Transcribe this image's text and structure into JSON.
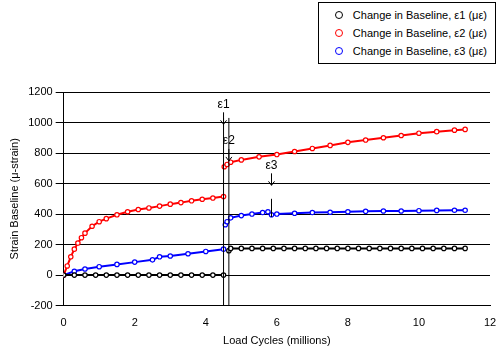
{
  "chart_data": {
    "type": "scatter",
    "x_label": "Load Cycles (millions)",
    "y_label": "Strain Baseline (μ-strain)",
    "xlim": [
      0,
      12
    ],
    "xticks": [
      0,
      2,
      4,
      6,
      8,
      10,
      12
    ],
    "ylim": [
      -200,
      1200
    ],
    "yticks": [
      -200,
      0,
      200,
      400,
      600,
      800,
      1000,
      1200
    ],
    "grid": "y",
    "legend": "upper right",
    "marker": "circle_open",
    "line_style": "solid",
    "series": [
      {
        "name": "Change in Baseline, ε1 (με)",
        "color": "#000000",
        "x": [
          0,
          0.3,
          0.6,
          0.9,
          1.2,
          1.5,
          1.8,
          2.1,
          2.4,
          2.7,
          3.0,
          3.3,
          3.6,
          3.9,
          4.2,
          4.5,
          4.6,
          4.65,
          4.7,
          5.0,
          5.3,
          5.6,
          5.9,
          6.2,
          6.5,
          6.8,
          7.1,
          7.4,
          7.7,
          8.0,
          8.3,
          8.6,
          8.9,
          9.2,
          9.5,
          9.8,
          10.1,
          10.4,
          10.7,
          11.0,
          11.3
        ],
        "values": [
          0,
          0,
          0,
          0,
          0,
          0,
          0,
          0,
          0,
          0,
          0,
          0,
          0,
          0,
          0,
          0,
          null,
          160,
          175,
          175,
          175,
          175,
          175,
          175,
          175,
          175,
          175,
          175,
          175,
          175,
          175,
          175,
          175,
          175,
          175,
          175,
          175,
          175,
          175,
          175,
          175
        ]
      },
      {
        "name": "Change in Baseline, ε2 (με)",
        "color": "#ff0000",
        "x": [
          0,
          0.1,
          0.2,
          0.3,
          0.4,
          0.5,
          0.6,
          0.8,
          1.0,
          1.2,
          1.5,
          1.8,
          2.1,
          2.4,
          2.7,
          3.0,
          3.3,
          3.6,
          3.9,
          4.2,
          4.5,
          4.51,
          4.52,
          4.6,
          4.7,
          5.0,
          5.5,
          6.0,
          6.5,
          7.0,
          7.5,
          8.0,
          8.5,
          9.0,
          9.5,
          10.0,
          10.5,
          11.0,
          11.3
        ],
        "values": [
          0,
          60,
          120,
          170,
          210,
          245,
          275,
          320,
          350,
          370,
          395,
          415,
          430,
          440,
          452,
          465,
          475,
          487,
          497,
          505,
          515,
          null,
          710,
          725,
          740,
          755,
          775,
          790,
          810,
          830,
          850,
          870,
          885,
          900,
          915,
          930,
          940,
          950,
          955
        ]
      },
      {
        "name": "Change in Baseline, ε3 (με)",
        "color": "#0000ff",
        "x": [
          0,
          0.3,
          0.6,
          1.0,
          1.5,
          2.0,
          2.5,
          2.7,
          3.0,
          3.5,
          4.0,
          4.5,
          4.52,
          4.55,
          4.6,
          4.7,
          5.0,
          5.3,
          5.6,
          5.75,
          5.85,
          6.0,
          6.5,
          7.0,
          7.5,
          8.0,
          8.5,
          9.0,
          9.5,
          10.0,
          10.5,
          11.0,
          11.3
        ],
        "values": [
          0,
          25,
          40,
          55,
          70,
          85,
          100,
          120,
          125,
          140,
          155,
          170,
          null,
          330,
          350,
          375,
          390,
          400,
          410,
          415,
          395,
          400,
          405,
          410,
          412,
          415,
          418,
          420,
          420,
          422,
          424,
          425,
          425
        ]
      }
    ],
    "annotations": [
      {
        "label": "ε1",
        "x": 4.5,
        "label_y": 1080,
        "line_top": 1030,
        "line_bottom": -200
      },
      {
        "label": "ε2",
        "x": 4.65,
        "label_y": 840,
        "line_top": 1030,
        "line_bottom": -200
      },
      {
        "label": "ε3",
        "x": 5.85,
        "label_y": 680,
        "line_top": 500,
        "line_bottom": 380
      }
    ]
  }
}
